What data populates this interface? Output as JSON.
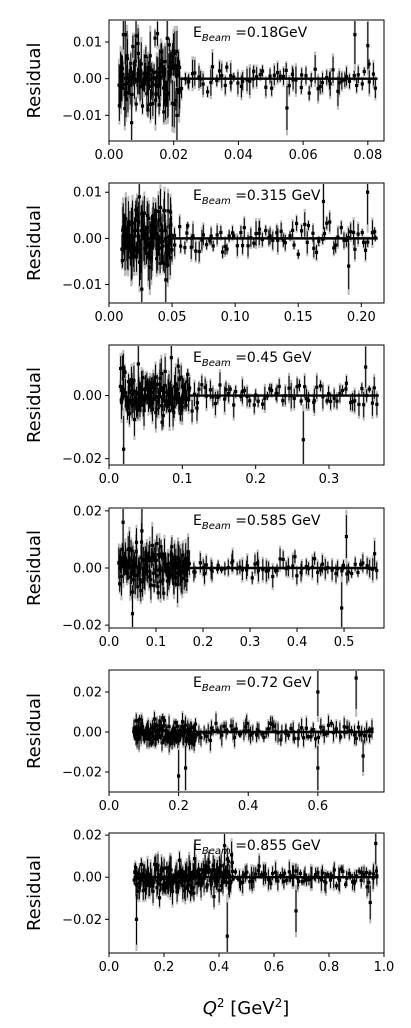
{
  "figure": {
    "xlabel": "Q² [GeV²]",
    "xlabel_parts": {
      "main": "Q",
      "sup": "2",
      "unit": "[GeV",
      "unit_sup": "2",
      "close": "]"
    }
  },
  "chart_data": [
    {
      "type": "scatter",
      "panel": "E_Beam = 0.18GeV",
      "annotation": {
        "prefix": "E",
        "sub": "Beam",
        "value": "=0.18GeV"
      },
      "ylabel": "Residual",
      "xlim": [
        0.0,
        0.085
      ],
      "ylim": [
        -0.017,
        0.016
      ],
      "xticks": [
        0.0,
        0.02,
        0.04,
        0.06,
        0.08
      ],
      "xtick_labels": [
        "0.00",
        "0.02",
        "0.04",
        "0.06",
        "0.08"
      ],
      "yticks": [
        -0.01,
        0.0,
        0.01
      ],
      "ytick_labels": [
        "−0.01",
        "0.00",
        "0.01"
      ],
      "baseline": {
        "x": [
          0.022,
          0.083
        ],
        "y": 0.0
      },
      "dense_region": {
        "x": [
          0.003,
          0.022
        ],
        "spread": 0.009,
        "err": 0.005,
        "n": 120
      },
      "sparse_region": {
        "x": [
          0.022,
          0.083
        ],
        "spread": 0.0035,
        "err": 0.003,
        "n": 70
      },
      "highlights": [
        [
          0.005,
          0.012
        ],
        [
          0.007,
          -0.012
        ],
        [
          0.018,
          0.011
        ],
        [
          0.021,
          -0.01
        ],
        [
          0.08,
          0.009
        ],
        [
          0.076,
          0.012
        ],
        [
          0.055,
          -0.008
        ]
      ]
    },
    {
      "type": "scatter",
      "panel": "E_Beam = 0.315 GeV",
      "annotation": {
        "prefix": "E",
        "sub": "Beam",
        "value": "=0.315 GeV"
      },
      "ylabel": "Residual",
      "xlim": [
        0.0,
        0.218
      ],
      "ylim": [
        -0.014,
        0.012
      ],
      "xticks": [
        0.0,
        0.05,
        0.1,
        0.15,
        0.2
      ],
      "xtick_labels": [
        "0.00",
        "0.05",
        "0.10",
        "0.15",
        "0.20"
      ],
      "yticks": [
        -0.01,
        0.0,
        0.01
      ],
      "ytick_labels": [
        "−0.01",
        "0.00",
        "0.01"
      ],
      "baseline": {
        "x": [
          0.05,
          0.213
        ],
        "y": 0.0
      },
      "dense_region": {
        "x": [
          0.01,
          0.05
        ],
        "spread": 0.006,
        "err": 0.004,
        "n": 120
      },
      "sparse_region": {
        "x": [
          0.05,
          0.213
        ],
        "spread": 0.003,
        "err": 0.002,
        "n": 80
      },
      "highlights": [
        [
          0.026,
          -0.011
        ],
        [
          0.024,
          0.009
        ],
        [
          0.045,
          -0.009
        ],
        [
          0.17,
          0.008
        ],
        [
          0.205,
          0.01
        ],
        [
          0.19,
          -0.006
        ]
      ]
    },
    {
      "type": "scatter",
      "panel": "E_Beam = 0.45 GeV",
      "annotation": {
        "prefix": "E",
        "sub": "Beam",
        "value": "=0.45 GeV"
      },
      "ylabel": "Residual",
      "xlim": [
        0.0,
        0.375
      ],
      "ylim": [
        -0.022,
        0.016
      ],
      "xticks": [
        0.0,
        0.1,
        0.2,
        0.3
      ],
      "xtick_labels": [
        "0.0",
        "0.1",
        "0.2",
        "0.3"
      ],
      "yticks": [
        -0.02,
        0.0
      ],
      "ytick_labels": [
        "−0.02",
        "0.00"
      ],
      "baseline": {
        "x": [
          0.11,
          0.368
        ],
        "y": 0.0
      },
      "dense_region": {
        "x": [
          0.015,
          0.11
        ],
        "spread": 0.007,
        "err": 0.004,
        "n": 150
      },
      "sparse_region": {
        "x": [
          0.11,
          0.368
        ],
        "spread": 0.004,
        "err": 0.003,
        "n": 70
      },
      "highlights": [
        [
          0.02,
          -0.017
        ],
        [
          0.04,
          0.01
        ],
        [
          0.085,
          0.012
        ],
        [
          0.265,
          -0.014
        ],
        [
          0.35,
          0.009
        ],
        [
          0.12,
          -0.004
        ]
      ]
    },
    {
      "type": "scatter",
      "panel": "E_Beam = 0.585 GeV",
      "annotation": {
        "prefix": "E",
        "sub": "Beam",
        "value": "=0.585 GeV"
      },
      "ylabel": "Residual",
      "xlim": [
        0.0,
        0.585
      ],
      "ylim": [
        -0.021,
        0.021
      ],
      "xticks": [
        0.0,
        0.1,
        0.2,
        0.3,
        0.4,
        0.5
      ],
      "xtick_labels": [
        "0.0",
        "0.1",
        "0.2",
        "0.3",
        "0.4",
        "0.5"
      ],
      "yticks": [
        -0.02,
        0.0,
        0.02
      ],
      "ytick_labels": [
        "−0.02",
        "0.00",
        "0.02"
      ],
      "baseline": {
        "x": [
          0.14,
          0.57
        ],
        "y": 0.0
      },
      "dense_region": {
        "x": [
          0.02,
          0.17
        ],
        "spread": 0.008,
        "err": 0.005,
        "n": 150
      },
      "sparse_region": {
        "x": [
          0.17,
          0.57
        ],
        "spread": 0.003,
        "err": 0.003,
        "n": 65
      },
      "highlights": [
        [
          0.03,
          0.016
        ],
        [
          0.05,
          -0.016
        ],
        [
          0.07,
          0.013
        ],
        [
          0.495,
          -0.014
        ],
        [
          0.505,
          0.011
        ],
        [
          0.565,
          0.005
        ]
      ]
    },
    {
      "type": "scatter",
      "panel": "E_Beam = 0.72 GeV",
      "annotation": {
        "prefix": "E",
        "sub": "Beam",
        "value": "=0.72 GeV"
      },
      "ylabel": "Residual",
      "xlim": [
        0.0,
        0.79
      ],
      "ylim": [
        -0.03,
        0.031
      ],
      "xticks": [
        0.0,
        0.2,
        0.4,
        0.6
      ],
      "xtick_labels": [
        "0.0",
        "0.2",
        "0.4",
        "0.6"
      ],
      "yticks": [
        -0.02,
        0.0,
        0.02
      ],
      "ytick_labels": [
        "−0.02",
        "0.00",
        "0.02"
      ],
      "baseline": {
        "x": [
          0.25,
          0.76
        ],
        "y": 0.0
      },
      "dense_region": {
        "x": [
          0.07,
          0.25
        ],
        "spread": 0.006,
        "err": 0.004,
        "n": 140
      },
      "sparse_region": {
        "x": [
          0.25,
          0.76
        ],
        "spread": 0.004,
        "err": 0.004,
        "n": 85
      },
      "highlights": [
        [
          0.2,
          -0.022
        ],
        [
          0.22,
          -0.018
        ],
        [
          0.6,
          0.02
        ],
        [
          0.6,
          -0.018
        ],
        [
          0.71,
          0.027
        ],
        [
          0.73,
          -0.012
        ]
      ]
    },
    {
      "type": "scatter",
      "panel": "E_Beam = 0.855 GeV",
      "annotation": {
        "prefix": "E",
        "sub": "Beam",
        "value": "=0.855 GeV"
      },
      "ylabel": "Residual",
      "xlim": [
        0.0,
        1.0
      ],
      "ylim": [
        -0.036,
        0.021
      ],
      "xticks": [
        0.0,
        0.2,
        0.4,
        0.6,
        0.8,
        1.0
      ],
      "xtick_labels": [
        "0.0",
        "0.2",
        "0.4",
        "0.6",
        "0.8",
        "1.0"
      ],
      "yticks": [
        -0.02,
        0.0,
        0.02
      ],
      "ytick_labels": [
        "−0.02",
        "0.00",
        "0.02"
      ],
      "baseline": {
        "x": [
          0.09,
          0.98
        ],
        "y": 0.0
      },
      "dense_region": {
        "x": [
          0.09,
          0.45
        ],
        "spread": 0.008,
        "err": 0.005,
        "n": 190
      },
      "sparse_region": {
        "x": [
          0.45,
          0.98
        ],
        "spread": 0.004,
        "err": 0.004,
        "n": 85
      },
      "highlights": [
        [
          0.1,
          -0.02
        ],
        [
          0.43,
          -0.028
        ],
        [
          0.42,
          0.015
        ],
        [
          0.68,
          -0.016
        ],
        [
          0.97,
          0.016
        ],
        [
          0.95,
          -0.012
        ]
      ]
    }
  ]
}
